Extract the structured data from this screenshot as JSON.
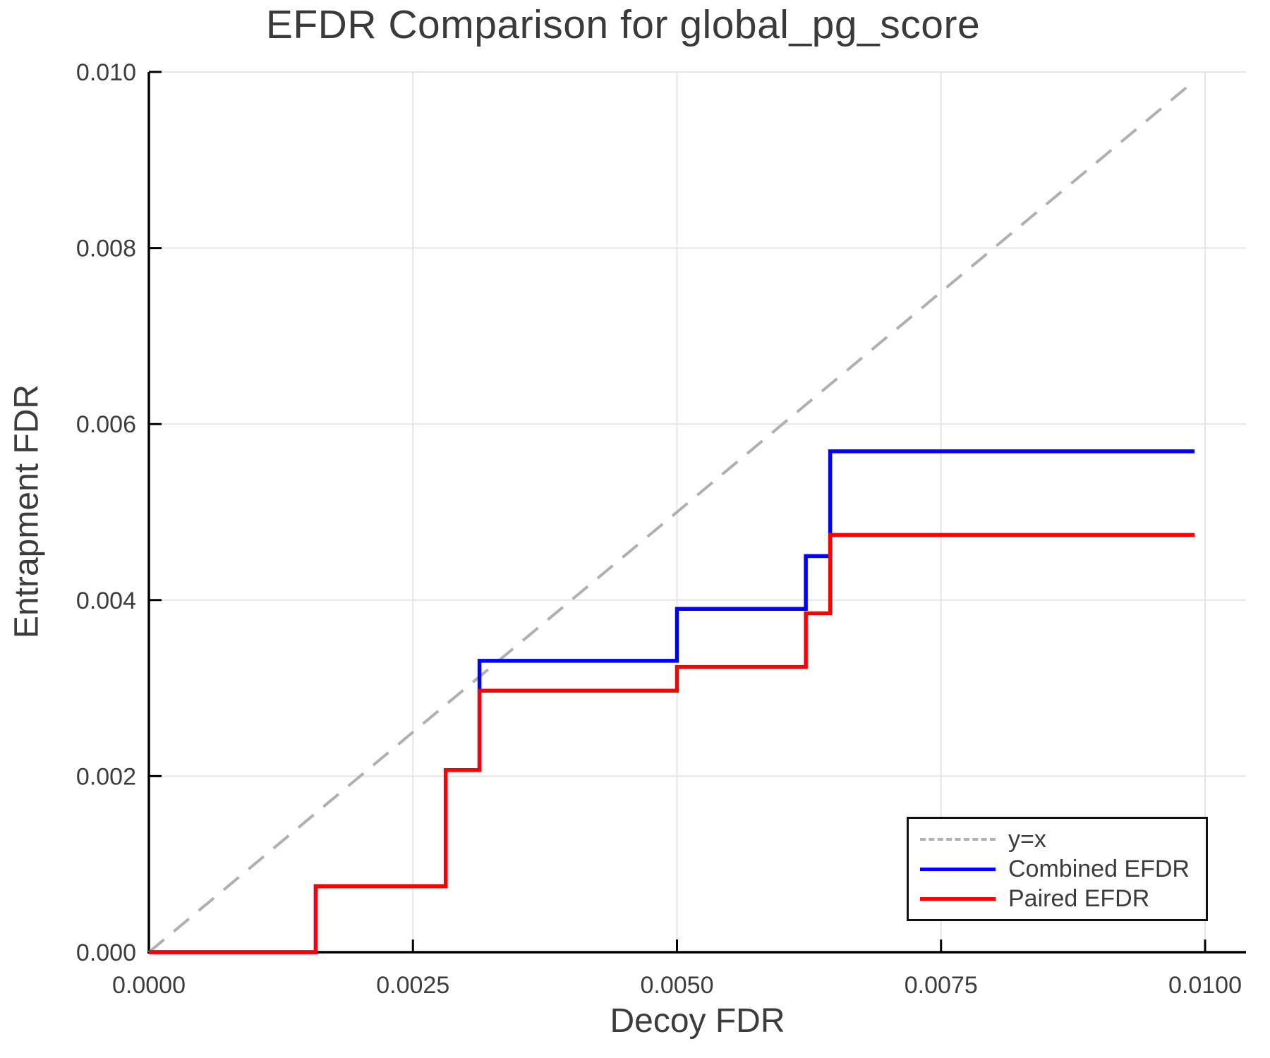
{
  "chart_data": {
    "type": "line",
    "variant": "step",
    "title": "EFDR Comparison for global_pg_score",
    "xlabel": "Decoy FDR",
    "ylabel": "Entrapment FDR",
    "xlim": [
      0.0,
      0.0104
    ],
    "ylim": [
      0.0,
      0.01
    ],
    "grid": true,
    "legend_position": "lower right",
    "x_ticks": [
      {
        "value": 0.0,
        "label": "0.0000"
      },
      {
        "value": 0.0025,
        "label": "0.0025"
      },
      {
        "value": 0.005,
        "label": "0.0050"
      },
      {
        "value": 0.0075,
        "label": "0.0075"
      },
      {
        "value": 0.01,
        "label": "0.0100"
      }
    ],
    "y_ticks": [
      {
        "value": 0.0,
        "label": "0.000"
      },
      {
        "value": 0.002,
        "label": "0.002"
      },
      {
        "value": 0.004,
        "label": "0.004"
      },
      {
        "value": 0.006,
        "label": "0.006"
      },
      {
        "value": 0.008,
        "label": "0.008"
      },
      {
        "value": 0.01,
        "label": "0.010"
      }
    ],
    "reference_line": {
      "name": "y=x",
      "from": [
        0.0,
        0.0
      ],
      "to": [
        0.0099,
        0.0099
      ],
      "style": "dashed",
      "color": "#b0b0b0"
    },
    "series": [
      {
        "name": "Combined EFDR",
        "color": "#0000ff",
        "points": [
          [
            0.0,
            0.0
          ],
          [
            0.00158,
            0.0
          ],
          [
            0.00158,
            0.00075
          ],
          [
            0.00281,
            0.00075
          ],
          [
            0.00281,
            0.00207
          ],
          [
            0.00313,
            0.00207
          ],
          [
            0.00313,
            0.00331
          ],
          [
            0.005,
            0.00331
          ],
          [
            0.005,
            0.0039
          ],
          [
            0.00622,
            0.0039
          ],
          [
            0.00622,
            0.0045
          ],
          [
            0.00645,
            0.0045
          ],
          [
            0.00645,
            0.00569
          ],
          [
            0.0099,
            0.00569
          ]
        ]
      },
      {
        "name": "Paired EFDR",
        "color": "#ff0000",
        "points": [
          [
            0.0,
            0.0
          ],
          [
            0.00158,
            0.0
          ],
          [
            0.00158,
            0.00075
          ],
          [
            0.00281,
            0.00075
          ],
          [
            0.00281,
            0.00207
          ],
          [
            0.00313,
            0.00207
          ],
          [
            0.00313,
            0.00297
          ],
          [
            0.005,
            0.00297
          ],
          [
            0.005,
            0.00324
          ],
          [
            0.00622,
            0.00324
          ],
          [
            0.00622,
            0.00385
          ],
          [
            0.00645,
            0.00385
          ],
          [
            0.00645,
            0.00474
          ],
          [
            0.0099,
            0.00474
          ]
        ]
      }
    ],
    "legend": {
      "items": [
        {
          "label": "y=x"
        },
        {
          "label": "Combined EFDR"
        },
        {
          "label": "Paired EFDR"
        }
      ]
    },
    "colors": {
      "grid": "#e5e5e5",
      "axis": "#000000",
      "text": "#3c3c3c"
    }
  }
}
